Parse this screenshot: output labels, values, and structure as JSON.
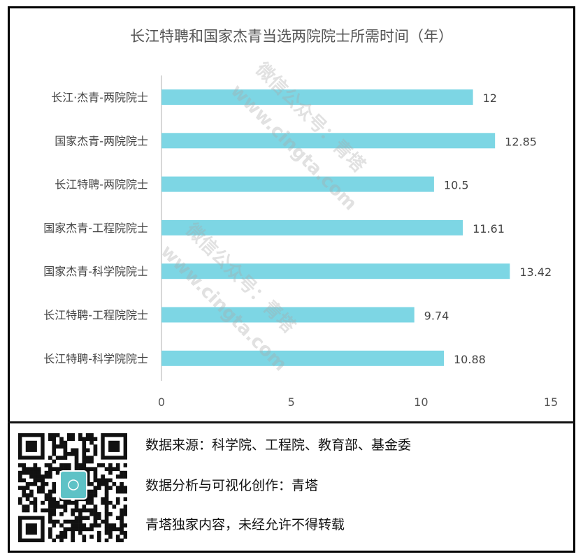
{
  "chart_data": {
    "type": "bar",
    "orientation": "horizontal",
    "title": "长江特聘和国家杰青当选两院院士所需时间（年）",
    "categories": [
      "长江·杰青-两院院士",
      "国家杰青-两院院士",
      "长江特聘-两院院士",
      "国家杰青-工程院院士",
      "国家杰青-科学院院士",
      "长江特聘-工程院院士",
      "长江特聘-科学院院士"
    ],
    "values": [
      12,
      12.85,
      10.5,
      11.61,
      13.42,
      9.74,
      10.88
    ],
    "value_labels": [
      "12",
      "12.85",
      "10.5",
      "11.61",
      "13.42",
      "9.74",
      "10.88"
    ],
    "xlim": [
      0,
      15
    ],
    "xticks": [
      "0",
      "5",
      "10",
      "15"
    ],
    "grid": false,
    "bar_color": "#7dd6e4"
  },
  "watermark": [
    "微信公众号：青塔",
    "www.cingta.com"
  ],
  "footer": {
    "source": "数据来源：科学院、工程院、教育部、基金委",
    "credit": "数据分析与可视化创作：青塔",
    "copyright": "青塔独家内容，未经允许不得转载",
    "qr_logo": "青塔"
  }
}
